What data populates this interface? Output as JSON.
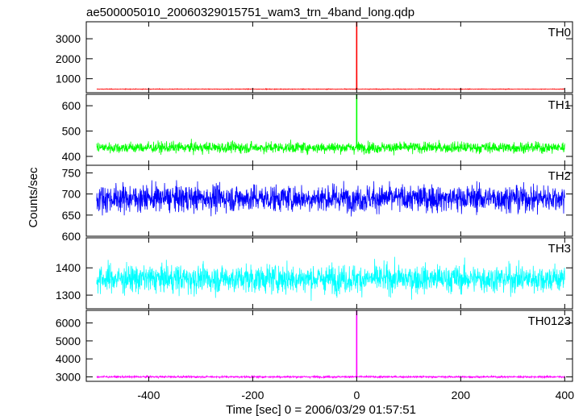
{
  "title": "ae500005010_20060329015751_wam3_trn_4band_long.qdp",
  "chart_data": {
    "type": "line",
    "title": "ae500005010_20060329015751_wam3_trn_4band_long.qdp",
    "xlabel": "Time [sec] 0 = 2006/03/29 01:57:51",
    "ylabel": "Counts/sec",
    "xlim": [
      -520,
      415
    ],
    "xticks": [
      -400,
      -200,
      0,
      200,
      400
    ],
    "legend": "none",
    "grid": false,
    "series": [
      {
        "name": "TH0",
        "color": "#ff0000",
        "ylim": [
          300,
          3850
        ],
        "yticks": [
          1000,
          2000,
          3000
        ],
        "x_range": [
          -500,
          400
        ],
        "baseline": 480,
        "noise_sd": 12,
        "peak": {
          "x": 0,
          "y": 3850
        }
      },
      {
        "name": "TH1",
        "color": "#00ff00",
        "ylim": [
          365,
          645
        ],
        "yticks": [
          400,
          500,
          600
        ],
        "x_range": [
          -500,
          400
        ],
        "baseline": 435,
        "noise_sd": 17,
        "peak": {
          "x": 0,
          "y": 645
        }
      },
      {
        "name": "TH2",
        "color": "#0000ff",
        "ylim": [
          600,
          768
        ],
        "yticks": [
          600,
          650,
          700,
          750
        ],
        "x_range": [
          -500,
          400
        ],
        "baseline": 690,
        "noise_sd": 25,
        "peak": null
      },
      {
        "name": "TH3",
        "color": "#00ffff",
        "ylim": [
          1250,
          1510
        ],
        "yticks": [
          1300,
          1400
        ],
        "x_range": [
          -500,
          400
        ],
        "baseline": 1360,
        "noise_sd": 40,
        "peak": null
      },
      {
        "name": "TH0123",
        "color": "#ff00ff",
        "ylim": [
          2750,
          6700
        ],
        "yticks": [
          3000,
          4000,
          5000,
          6000
        ],
        "x_range": [
          -500,
          400
        ],
        "baseline": 3000,
        "noise_sd": 40,
        "peak": {
          "x": 0,
          "y": 6700
        }
      }
    ]
  }
}
